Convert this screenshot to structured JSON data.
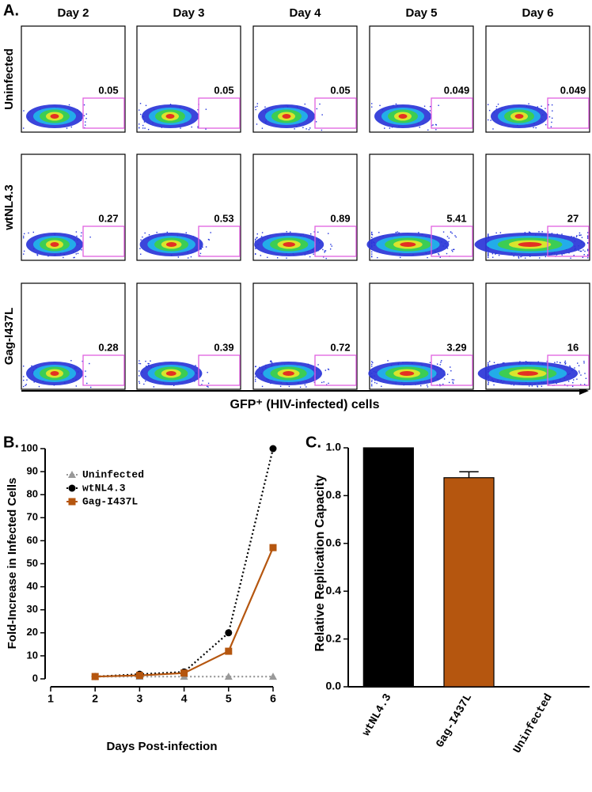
{
  "panel_labels": [
    "A.",
    "B.",
    "C."
  ],
  "flow": {
    "days": [
      "Day 2",
      "Day 3",
      "Day 4",
      "Day 5",
      "Day 6"
    ],
    "conditions": [
      "Uninfected",
      "wtNL4.3",
      "Gag-I437L"
    ],
    "gate_percent": [
      [
        0.05,
        0.05,
        0.05,
        0.049,
        0.049
      ],
      [
        0.27,
        0.53,
        0.89,
        5.41,
        27
      ],
      [
        0.28,
        0.39,
        0.72,
        3.29,
        16
      ]
    ],
    "x_label": "GFP⁺ (HIV-infected) cells"
  },
  "chart_data": [
    {
      "type": "line",
      "x_label": "Days Post-infection",
      "y_label": "Fold-Increase in Infected Cells",
      "x": [
        2,
        3,
        4,
        5,
        6
      ],
      "series": [
        {
          "name": "Uninfected",
          "color": "#999999",
          "marker": "triangle",
          "line_style": "dotted",
          "values": [
            1,
            1,
            1,
            1,
            1
          ]
        },
        {
          "name": "wtNL4.3",
          "color": "#000000",
          "marker": "circle",
          "line_style": "dotted",
          "values": [
            1,
            2,
            3,
            20,
            100
          ]
        },
        {
          "name": "Gag-I437L",
          "color": "#b5560f",
          "marker": "square",
          "line_style": "solid",
          "values": [
            1,
            1.5,
            2.5,
            12,
            57
          ]
        }
      ],
      "xlim": [
        1,
        6
      ],
      "xticks": [
        1,
        2,
        3,
        4,
        5,
        6
      ],
      "ylim": [
        0,
        100
      ],
      "yticks": [
        0,
        10,
        20,
        30,
        40,
        50,
        60,
        70,
        80,
        90,
        100
      ],
      "legend": "top-left"
    },
    {
      "type": "bar",
      "y_label": "Relative Replication Capacity",
      "categories": [
        "wtNL4.3",
        "Gag-I437L",
        "Uninfected"
      ],
      "values": [
        1.0,
        0.875,
        0
      ],
      "errors": [
        null,
        0.025,
        null
      ],
      "colors": [
        "#000000",
        "#b5560f",
        "#ffffff"
      ],
      "ylim": [
        0,
        1.0
      ],
      "yticks": [
        {
          "value": 0,
          "label": "0.0"
        },
        0.2,
        0.4,
        0.6,
        0.8,
        {
          "value": 1,
          "label": "1.0"
        }
      ]
    }
  ]
}
